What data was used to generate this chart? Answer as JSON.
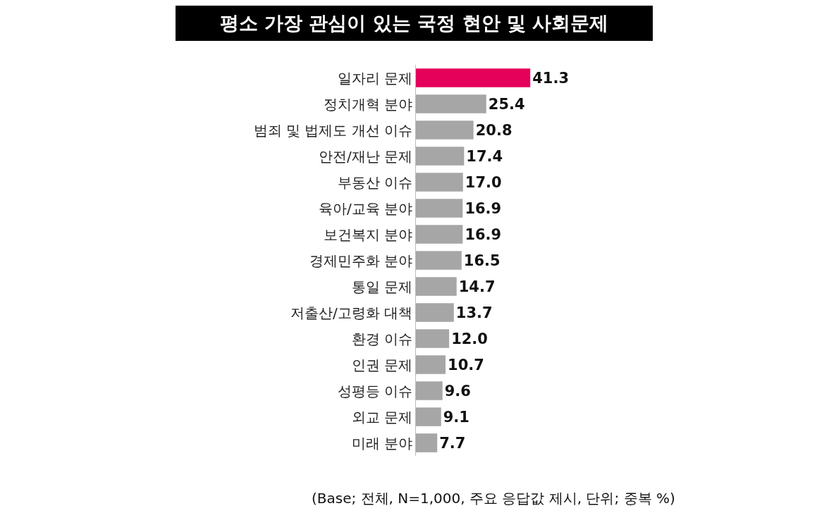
{
  "chart_data": {
    "type": "bar",
    "orientation": "horizontal",
    "title": "평소 가장 관심이 있는 국정 현안 및 사회문제",
    "categories": [
      "일자리 문제",
      "정치개혁 분야",
      "범죄 및 법제도 개선 이슈",
      "안전/재난 문제",
      "부동산 이슈",
      "육아/교육 분야",
      "보건복지 분야",
      "경제민주화 분야",
      "통일 문제",
      "저출산/고령화 대책",
      "환경 이슈",
      "인권 문제",
      "성평등 이슈",
      "외교 문제",
      "미래 분야"
    ],
    "values": [
      41.3,
      25.4,
      20.8,
      17.4,
      17.0,
      16.9,
      16.9,
      16.5,
      14.7,
      13.7,
      12.0,
      10.7,
      9.6,
      9.1,
      7.7
    ],
    "value_labels": [
      "41.3",
      "25.4",
      "20.8",
      "17.4",
      "17.0",
      "16.9",
      "16.9",
      "16.5",
      "14.7",
      "13.7",
      "12.0",
      "10.7",
      "9.6",
      "9.1",
      "7.7"
    ],
    "colors": [
      "#e5005a",
      "#a6a6a6",
      "#a6a6a6",
      "#a6a6a6",
      "#a6a6a6",
      "#a6a6a6",
      "#a6a6a6",
      "#a6a6a6",
      "#a6a6a6",
      "#a6a6a6",
      "#a6a6a6",
      "#a6a6a6",
      "#a6a6a6",
      "#a6a6a6",
      "#a6a6a6"
    ],
    "annotations": [
      "(Base; 전체, N=1,000, 주요 응답값 제시, 단위; 중복 %)"
    ]
  }
}
